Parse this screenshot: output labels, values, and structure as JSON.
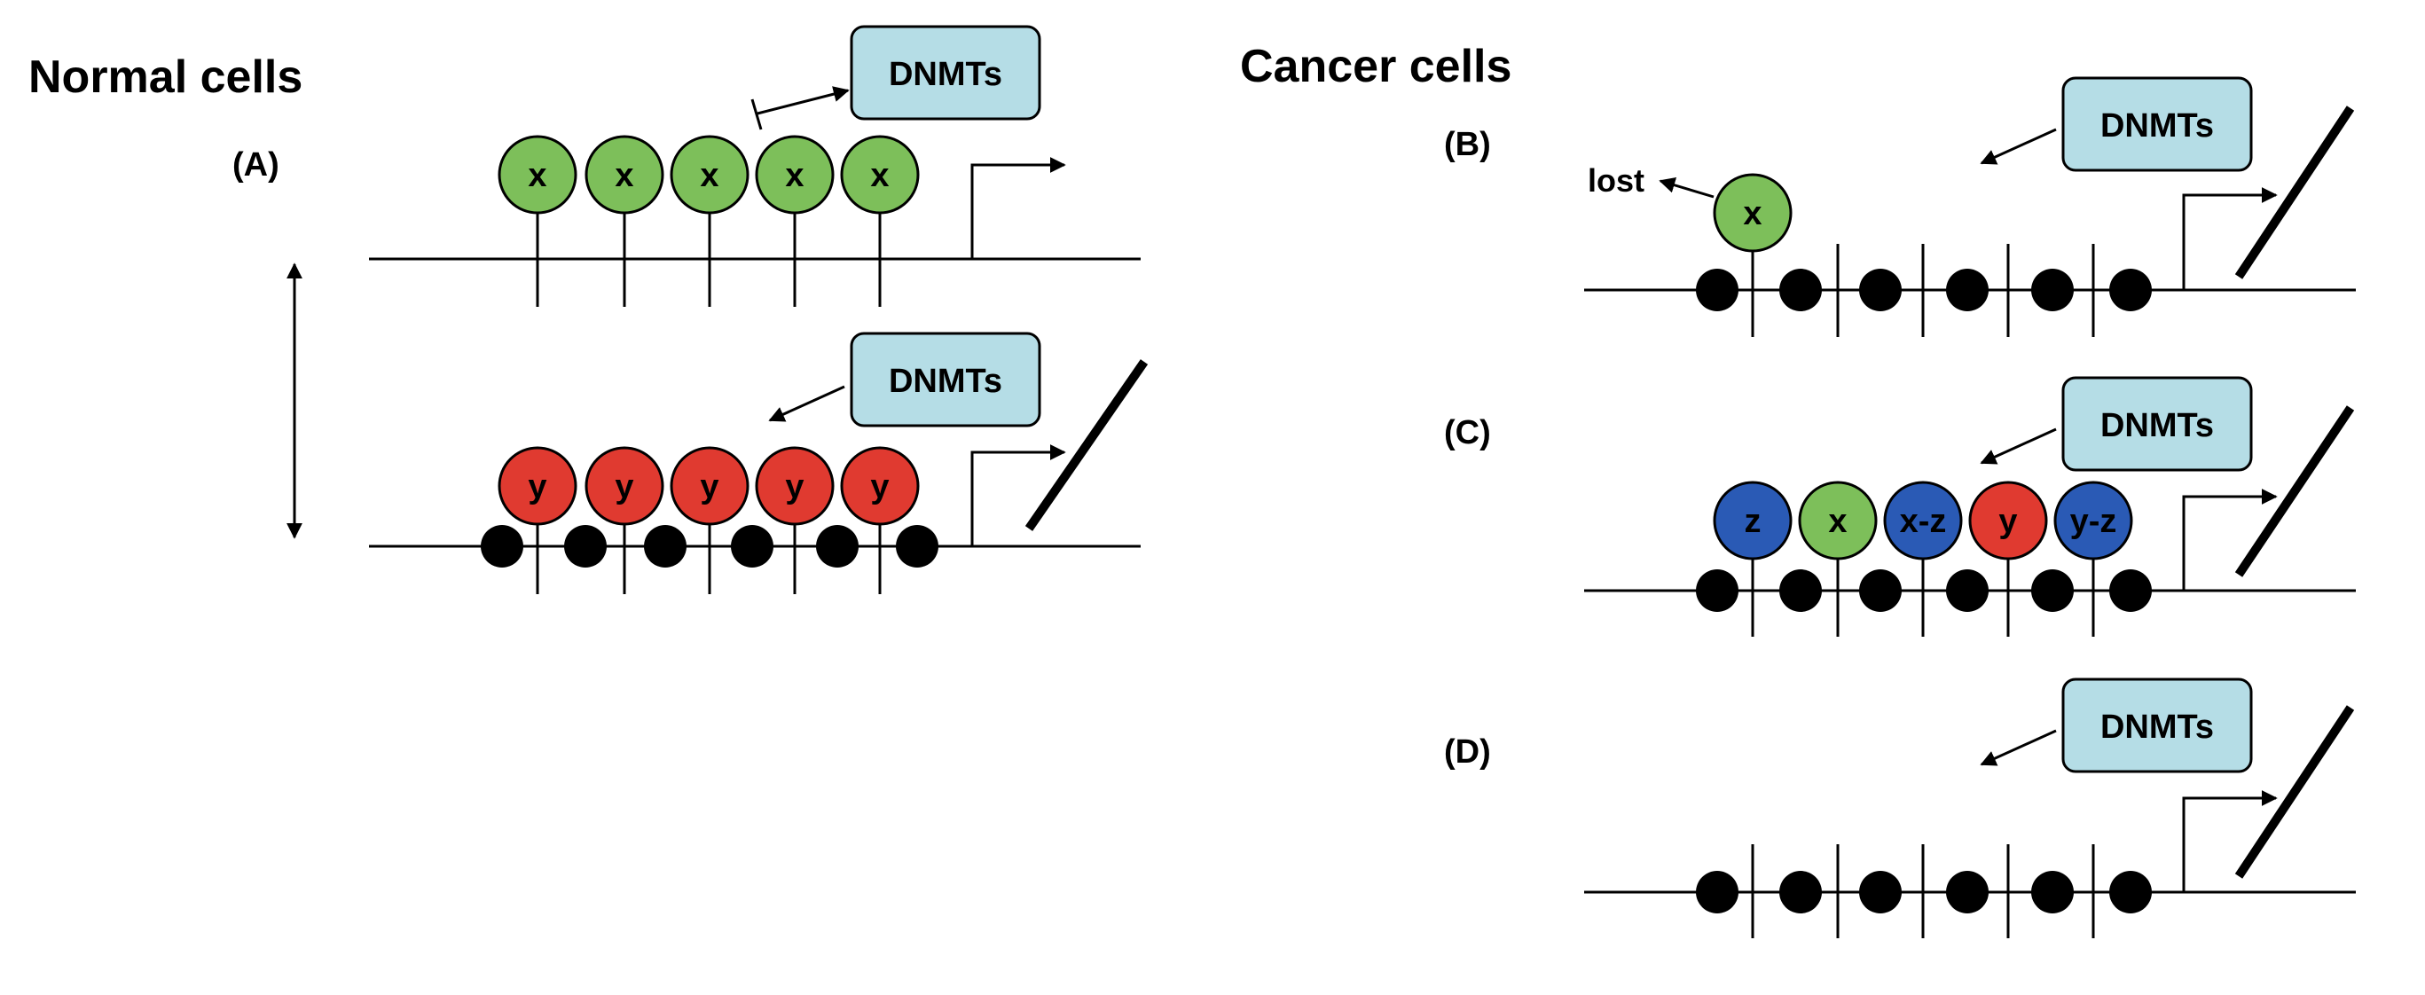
{
  "headings": {
    "normal": "Normal cells",
    "cancer": "Cancer cells"
  },
  "panels": {
    "A": "(A)",
    "B": "(B)",
    "C": "(C)",
    "D": "(D)"
  },
  "dnmt_label": "DNMTs",
  "lost_label": "lost",
  "colors": {
    "green": "#7dbf5a",
    "red": "#e03a30",
    "blue": "#2a5ab5",
    "box": "#b5dde6"
  },
  "circles": {
    "a_top": [
      {
        "label": "x",
        "color": "green"
      },
      {
        "label": "x",
        "color": "green"
      },
      {
        "label": "x",
        "color": "green"
      },
      {
        "label": "x",
        "color": "green"
      },
      {
        "label": "x",
        "color": "green"
      }
    ],
    "a_bottom": [
      {
        "label": "y",
        "color": "red"
      },
      {
        "label": "y",
        "color": "red"
      },
      {
        "label": "y",
        "color": "red"
      },
      {
        "label": "y",
        "color": "red"
      },
      {
        "label": "y",
        "color": "red"
      }
    ],
    "b": [
      {
        "label": "x",
        "color": "green"
      }
    ],
    "c": [
      {
        "label": "z",
        "color": "blue"
      },
      {
        "label": "x",
        "color": "green"
      },
      {
        "label": "x-z",
        "color": "blue"
      },
      {
        "label": "y",
        "color": "red"
      },
      {
        "label": "y-z",
        "color": "blue"
      }
    ]
  }
}
